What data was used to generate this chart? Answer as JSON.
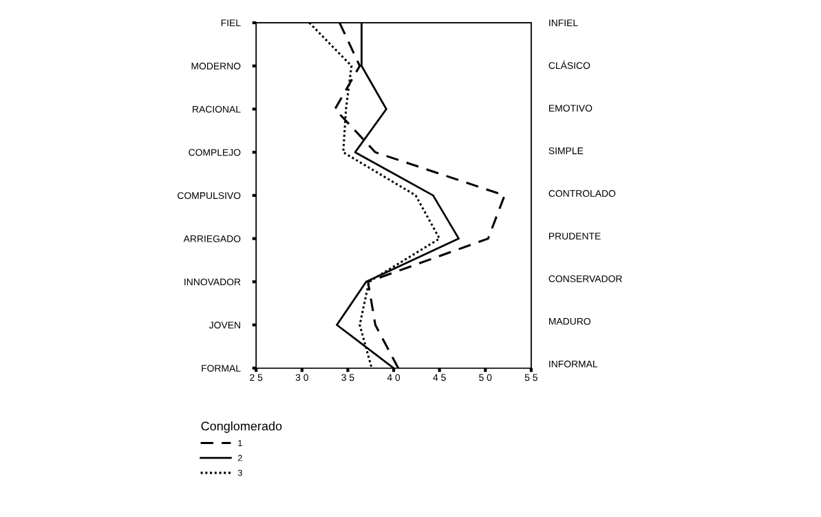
{
  "chart_data": {
    "type": "line",
    "orientation": "horizontal",
    "categories": [
      "FIEL",
      "MODERNO",
      "RACIONAL",
      "COMPLEJO",
      "COMPULSIVO",
      "ARRIEGADO",
      "INNOVADOR",
      "JOVEN",
      "FORMAL"
    ],
    "y2_categories": [
      "INFIEL",
      "CLÁSICO",
      "EMOTIVO",
      "SIMPLE",
      "CONTROLADO",
      "PRUDENTE",
      "CONSERVADOR",
      "MADURO",
      "INFORMAL"
    ],
    "xlim": [
      25,
      55
    ],
    "xticks": [
      25,
      30,
      35,
      40,
      45,
      50,
      55
    ],
    "legend_title": "Conglomerado",
    "legend": "bottom",
    "grid": false,
    "marker": "none",
    "series": [
      {
        "name": "1",
        "color": "#000000",
        "line_style": "dashed",
        "values": [
          34.1,
          36.3,
          33.6,
          38.0,
          52.1,
          50.3,
          37.2,
          38.0,
          40.5
        ]
      },
      {
        "name": "2",
        "color": "#000000",
        "line_style": "solid",
        "values": [
          36.5,
          36.5,
          39.2,
          35.8,
          44.3,
          47.1,
          37.0,
          33.8,
          40.0
        ]
      },
      {
        "name": "3",
        "color": "#000000",
        "line_style": "dotted",
        "values": [
          30.8,
          35.4,
          34.8,
          34.5,
          42.4,
          45.0,
          37.3,
          36.3,
          37.6
        ]
      }
    ]
  }
}
